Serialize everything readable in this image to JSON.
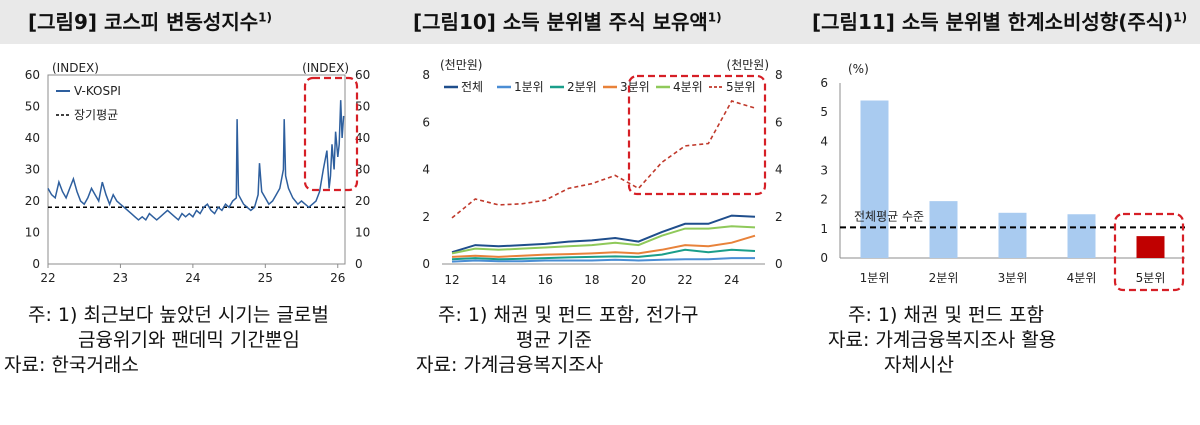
{
  "fig9": {
    "title": "[그림9]  코스피  변동성지수",
    "title_sup": "1)",
    "left_unit": "(INDEX)",
    "right_unit": "(INDEX)",
    "legend": [
      {
        "label": "V-KOSPI"
      },
      {
        "label": "장기평균"
      }
    ],
    "colors": {
      "line": "#2e5f9e",
      "highlight": "#d61f26"
    },
    "notes": {
      "n1a": "주:  1)  최근보다  높았던  시기는  글로벌",
      "n1b": "금융위기와  팬데믹  기간뿐임",
      "n2": "자료:  한국거래소"
    }
  },
  "fig10": {
    "title": "[그림10]  소득 분위별 주식 보유액",
    "title_sup": "1)",
    "left_unit": "(천만원)",
    "right_unit": "(천만원)",
    "colors": {
      "highlight": "#d61f26"
    },
    "notes": {
      "n1a": "주:  1)  채권  및  펀드  포함,  전가구",
      "n1b": "평균  기준",
      "n2": "자료:  가계금융복지조사"
    }
  },
  "fig11": {
    "title": "[그림11]  소득 분위별 한계소비성향(주식)",
    "title_sup": "1)",
    "unit": "(%)",
    "avg_label": "전체평균 수준",
    "colors": {
      "bar": "#a9cbf0",
      "highlight_bar": "#c00000",
      "highlight": "#d61f26"
    },
    "notes": {
      "n1": "주:  1)  채권  및  펀드  포함",
      "n2a": "자료:  가계금융복지조사  활용",
      "n2b": "자체시산"
    }
  },
  "chart_data": [
    {
      "type": "line",
      "title": "[그림9]  코스피  변동성지수",
      "ylabel": "(INDEX)",
      "y2label": "(INDEX)",
      "xticks": [
        "22",
        "23",
        "24",
        "25",
        "26"
      ],
      "yticks": [
        0,
        10,
        20,
        30,
        40,
        50,
        60
      ],
      "ylim": [
        0,
        60
      ],
      "xlim": [
        2022.0,
        2026.1
      ],
      "long_run_average": 18,
      "legend_placement": "top-left",
      "series": [
        {
          "name": "V-KOSPI",
          "x": [
            2022.0,
            2022.05,
            2022.1,
            2022.15,
            2022.2,
            2022.25,
            2022.3,
            2022.35,
            2022.4,
            2022.45,
            2022.5,
            2022.55,
            2022.6,
            2022.65,
            2022.7,
            2022.75,
            2022.8,
            2022.85,
            2022.9,
            2022.95,
            2023.0,
            2023.05,
            2023.1,
            2023.15,
            2023.2,
            2023.25,
            2023.3,
            2023.35,
            2023.4,
            2023.45,
            2023.5,
            2023.55,
            2023.6,
            2023.65,
            2023.7,
            2023.75,
            2023.8,
            2023.85,
            2023.9,
            2023.95,
            2024.0,
            2024.05,
            2024.1,
            2024.15,
            2024.2,
            2024.25,
            2024.3,
            2024.35,
            2024.4,
            2024.45,
            2024.5,
            2024.55,
            2024.6,
            2024.61,
            2024.63,
            2024.7,
            2024.75,
            2024.8,
            2024.85,
            2024.9,
            2024.92,
            2024.95,
            2025.0,
            2025.05,
            2025.1,
            2025.15,
            2025.2,
            2025.25,
            2025.26,
            2025.28,
            2025.32,
            2025.38,
            2025.45,
            2025.5,
            2025.55,
            2025.6,
            2025.65,
            2025.7,
            2025.75,
            2025.8,
            2025.85,
            2025.88,
            2025.9,
            2025.92,
            2025.95,
            2025.97,
            2026.0,
            2026.02,
            2026.04,
            2026.06,
            2026.08
          ],
          "values": [
            24,
            22,
            21,
            26,
            23,
            21,
            24,
            27,
            23,
            20,
            19,
            21,
            24,
            22,
            20,
            26,
            22,
            19,
            22,
            20,
            19,
            18,
            17,
            16,
            15,
            14,
            15,
            14,
            16,
            15,
            14,
            15,
            16,
            17,
            16,
            15,
            14,
            16,
            15,
            16,
            15,
            17,
            16,
            18,
            19,
            17,
            16,
            18,
            17,
            19,
            18,
            20,
            21,
            46,
            22,
            19,
            18,
            17,
            18,
            22,
            32,
            23,
            21,
            19,
            20,
            22,
            24,
            30,
            46,
            28,
            24,
            21,
            19,
            20,
            19,
            18,
            19,
            20,
            23,
            30,
            36,
            24,
            28,
            38,
            30,
            42,
            34,
            38,
            52,
            40,
            47
          ]
        }
      ]
    },
    {
      "type": "line",
      "title": "[그림10]  소득 분위별 주식 보유액",
      "ylabel": "(천만원)",
      "y2label": "(천만원)",
      "x": [
        2012,
        2013,
        2014,
        2015,
        2016,
        2017,
        2018,
        2019,
        2020,
        2021,
        2022,
        2023,
        2024,
        2025
      ],
      "xticks": [
        "12",
        "14",
        "16",
        "18",
        "20",
        "22",
        "24"
      ],
      "yticks": [
        0,
        2,
        4,
        6,
        8
      ],
      "ylim": [
        0,
        8
      ],
      "legend_placement": "top",
      "series": [
        {
          "name": "전체",
          "color": "#1f4e8c",
          "values": [
            0.5,
            0.8,
            0.75,
            0.8,
            0.85,
            0.95,
            1.0,
            1.1,
            0.95,
            1.35,
            1.7,
            1.7,
            2.05,
            2.0
          ]
        },
        {
          "name": "1분위",
          "color": "#4a8dd4",
          "values": [
            0.1,
            0.15,
            0.12,
            0.12,
            0.15,
            0.15,
            0.15,
            0.18,
            0.15,
            0.18,
            0.2,
            0.2,
            0.25,
            0.25
          ]
        },
        {
          "name": "2분위",
          "color": "#1a9e8a",
          "values": [
            0.2,
            0.25,
            0.2,
            0.22,
            0.25,
            0.28,
            0.3,
            0.32,
            0.3,
            0.4,
            0.6,
            0.5,
            0.6,
            0.55
          ]
        },
        {
          "name": "3분위",
          "color": "#e8823a",
          "values": [
            0.3,
            0.35,
            0.3,
            0.35,
            0.4,
            0.42,
            0.45,
            0.5,
            0.45,
            0.6,
            0.8,
            0.75,
            0.9,
            1.2
          ]
        },
        {
          "name": "4분위",
          "color": "#8fc95a",
          "values": [
            0.45,
            0.65,
            0.6,
            0.65,
            0.7,
            0.75,
            0.8,
            0.9,
            0.8,
            1.2,
            1.5,
            1.5,
            1.6,
            1.55
          ]
        },
        {
          "name": "5분위",
          "color": "#c0392b",
          "dashed": true,
          "values": [
            1.95,
            2.75,
            2.5,
            2.55,
            2.7,
            3.2,
            3.4,
            3.75,
            3.2,
            4.3,
            5.0,
            5.1,
            6.9,
            6.6
          ]
        }
      ]
    },
    {
      "type": "bar",
      "title": "[그림11]  소득 분위별 한계소비성향(주식)",
      "ylabel": "(%)",
      "categories": [
        "1분위",
        "2분위",
        "3분위",
        "4분위",
        "5분위"
      ],
      "values": [
        5.4,
        1.95,
        1.55,
        1.5,
        0.75
      ],
      "yticks": [
        0,
        1,
        2,
        3,
        4,
        5,
        6
      ],
      "ylim": [
        0,
        6
      ],
      "average_line": 1.05,
      "average_label": "전체평균 수준",
      "grid": false
    }
  ]
}
